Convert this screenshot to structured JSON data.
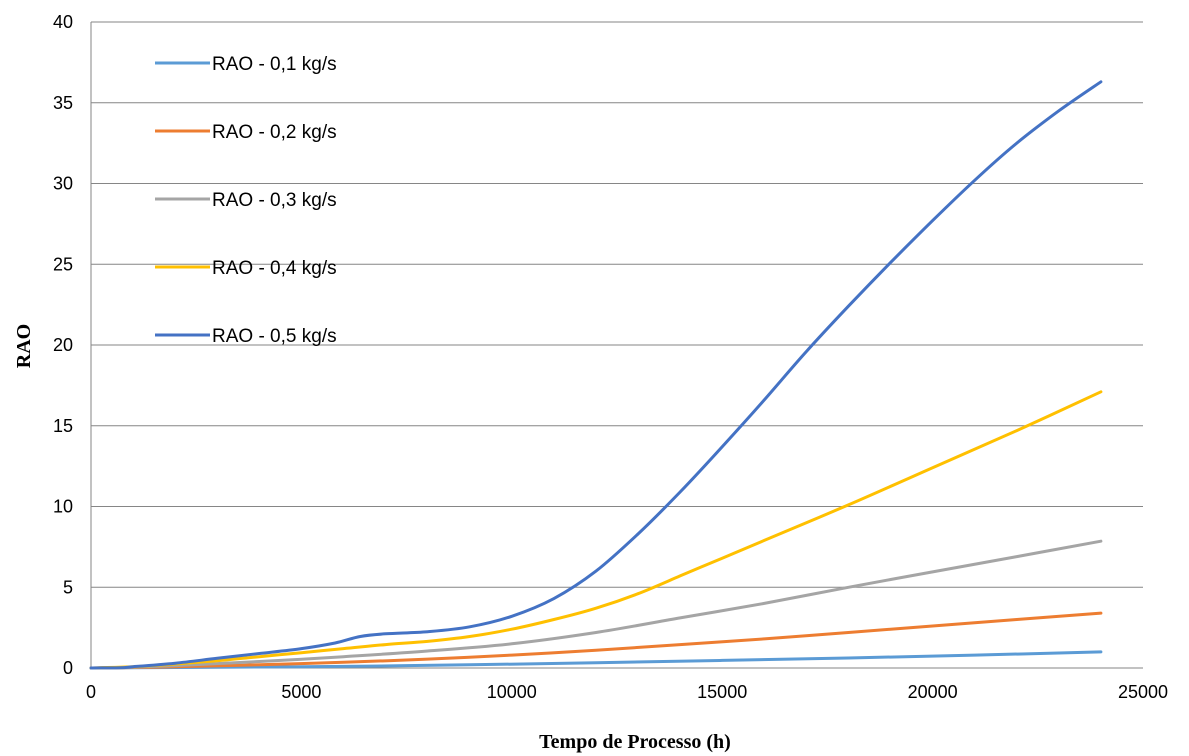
{
  "chart_data": {
    "type": "line",
    "title": "",
    "xlabel": "Tempo de Processo (h)",
    "ylabel": "RAO",
    "xlim": [
      0,
      25000
    ],
    "ylim": [
      0,
      40
    ],
    "x_ticks": [
      "0",
      "5000",
      "10000",
      "15000",
      "20000",
      "25000"
    ],
    "y_ticks": [
      "0",
      "5",
      "10",
      "15",
      "20",
      "25",
      "30",
      "35",
      "40"
    ],
    "grid": "horizontal",
    "legend_position": "top-left",
    "series": [
      {
        "name": "RAO - 0,1 kg/s",
        "color": "#5B9BD5",
        "points": [
          [
            0,
            0
          ],
          [
            1000,
            0.02
          ],
          [
            3000,
            0.05
          ],
          [
            6000,
            0.1
          ],
          [
            9000,
            0.2
          ],
          [
            12000,
            0.32
          ],
          [
            15000,
            0.47
          ],
          [
            18000,
            0.62
          ],
          [
            21000,
            0.8
          ],
          [
            24000,
            1.0
          ]
        ]
      },
      {
        "name": "RAO - 0,2 kg/s",
        "color": "#ED7D31",
        "points": [
          [
            0,
            0
          ],
          [
            1000,
            0.03
          ],
          [
            2000,
            0.08
          ],
          [
            4000,
            0.2
          ],
          [
            6000,
            0.35
          ],
          [
            8000,
            0.55
          ],
          [
            10000,
            0.8
          ],
          [
            12000,
            1.1
          ],
          [
            14000,
            1.45
          ],
          [
            16000,
            1.8
          ],
          [
            18000,
            2.2
          ],
          [
            20000,
            2.6
          ],
          [
            22000,
            3.0
          ],
          [
            24000,
            3.4
          ]
        ]
      },
      {
        "name": "RAO - 0,3 kg/s",
        "color": "#A5A5A5",
        "points": [
          [
            0,
            0
          ],
          [
            1000,
            0.05
          ],
          [
            2000,
            0.15
          ],
          [
            4000,
            0.4
          ],
          [
            6000,
            0.7
          ],
          [
            8000,
            1.05
          ],
          [
            10000,
            1.5
          ],
          [
            12000,
            2.2
          ],
          [
            14000,
            3.1
          ],
          [
            16000,
            4.0
          ],
          [
            18000,
            5.0
          ],
          [
            20000,
            5.95
          ],
          [
            22000,
            6.9
          ],
          [
            24000,
            7.85
          ]
        ]
      },
      {
        "name": "RAO - 0,4 kg/s",
        "color": "#FFC000",
        "points": [
          [
            0,
            0
          ],
          [
            1000,
            0.08
          ],
          [
            2000,
            0.25
          ],
          [
            3000,
            0.45
          ],
          [
            4000,
            0.7
          ],
          [
            5000,
            0.95
          ],
          [
            6000,
            1.2
          ],
          [
            7000,
            1.45
          ],
          [
            8000,
            1.65
          ],
          [
            9000,
            1.95
          ],
          [
            10000,
            2.4
          ],
          [
            11000,
            3.0
          ],
          [
            12000,
            3.7
          ],
          [
            13000,
            4.6
          ],
          [
            14000,
            5.7
          ],
          [
            15000,
            6.8
          ],
          [
            16000,
            7.9
          ],
          [
            18000,
            10.1
          ],
          [
            20000,
            12.4
          ],
          [
            22000,
            14.7
          ],
          [
            24000,
            17.1
          ]
        ]
      },
      {
        "name": "RAO - 0,5 kg/s",
        "color": "#4472C4",
        "points": [
          [
            0,
            0
          ],
          [
            700,
            0.02
          ],
          [
            1000,
            0.08
          ],
          [
            2000,
            0.3
          ],
          [
            3000,
            0.6
          ],
          [
            4000,
            0.9
          ],
          [
            5000,
            1.2
          ],
          [
            5800,
            1.55
          ],
          [
            6400,
            1.95
          ],
          [
            7000,
            2.12
          ],
          [
            8000,
            2.25
          ],
          [
            9000,
            2.55
          ],
          [
            10000,
            3.2
          ],
          [
            11000,
            4.3
          ],
          [
            12000,
            6.0
          ],
          [
            13000,
            8.3
          ],
          [
            14000,
            10.9
          ],
          [
            15000,
            13.7
          ],
          [
            16000,
            16.6
          ],
          [
            17000,
            19.6
          ],
          [
            18000,
            22.4
          ],
          [
            19000,
            25.1
          ],
          [
            20000,
            27.7
          ],
          [
            21000,
            30.2
          ],
          [
            22000,
            32.5
          ],
          [
            23000,
            34.5
          ],
          [
            24000,
            36.3
          ]
        ]
      }
    ]
  }
}
